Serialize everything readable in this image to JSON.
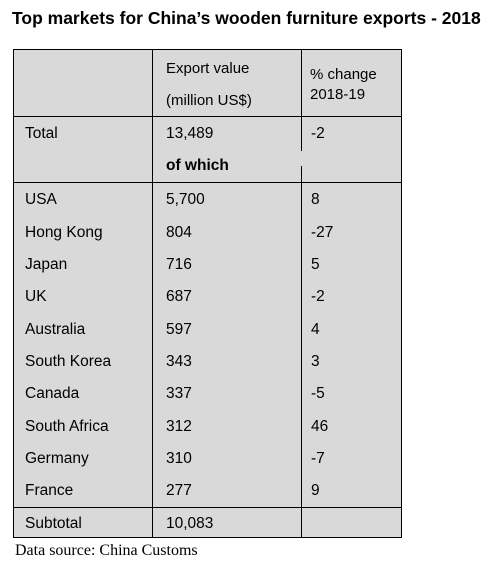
{
  "title": "Top markets for China’s wooden furniture exports - 2018",
  "header": {
    "col1": "",
    "col2_line1": "Export value",
    "col2_line2": "(million US$)",
    "col3_line1": "% change",
    "col3_line2": "2018-19"
  },
  "total": {
    "label": "Total",
    "value": "13,489",
    "change": "-2"
  },
  "of_which": "of which",
  "rows": [
    {
      "market": "USA",
      "value": "5,700",
      "change": "8"
    },
    {
      "market": "Hong Kong",
      "value": "804",
      "change": "-27"
    },
    {
      "market": "Japan",
      "value": "716",
      "change": "5"
    },
    {
      "market": "UK",
      "value": "687",
      "change": "-2"
    },
    {
      "market": "Australia",
      "value": "597",
      "change": "4"
    },
    {
      "market": "South Korea",
      "value": "343",
      "change": "3"
    },
    {
      "market": "Canada",
      "value": "337",
      "change": "-5"
    },
    {
      "market": "South Africa",
      "value": "312",
      "change": "46"
    },
    {
      "market": "Germany",
      "value": "310",
      "change": "-7"
    },
    {
      "market": "France",
      "value": "277",
      "change": "9"
    }
  ],
  "subtotal": {
    "label": "Subtotal",
    "value": "10,083",
    "change": ""
  },
  "source": "Data source: China Customs"
}
